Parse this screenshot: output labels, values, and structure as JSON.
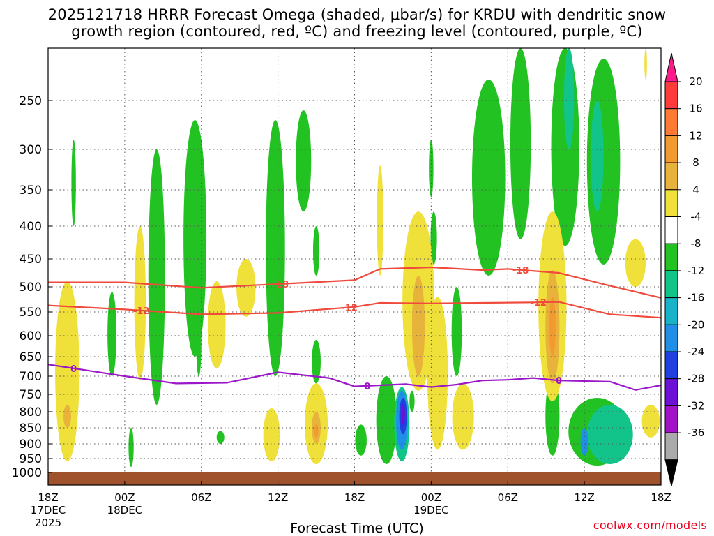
{
  "title": {
    "line1": "2025121718 HRRR Forecast Omega (shaded, μbar/s) for KRDU with dendritic snow",
    "line2": "growth region (contoured, red, ºC) and freezing level (contoured, purple, ºC)"
  },
  "xlabel": "Forecast Time (UTC)",
  "credit": "coolwx.com/models",
  "colors": {
    "dendritic_contour": "#f04a3c",
    "freezing_contour": "#9b17c9",
    "terrain": "#a0522d",
    "grid": "#555555"
  },
  "chart_data": {
    "type": "heatmap",
    "title": "2025121718 HRRR Forecast Omega (shaded, μbar/s) for KRDU with dendritic snow growth region (contoured, red, ºC) and freezing level (contoured, purple, ºC)",
    "xlabel": "Forecast Time (UTC)",
    "ylabel": "",
    "y_ticks": [
      250,
      300,
      350,
      400,
      450,
      500,
      550,
      600,
      650,
      700,
      750,
      800,
      850,
      900,
      950,
      1000
    ],
    "x_ticks": [
      {
        "label": "18Z",
        "sub1": "17DEC",
        "sub2": "2025",
        "hour": 0
      },
      {
        "label": "00Z",
        "sub1": "18DEC",
        "sub2": "",
        "hour": 6
      },
      {
        "label": "06Z",
        "sub1": "",
        "sub2": "",
        "hour": 12
      },
      {
        "label": "12Z",
        "sub1": "",
        "sub2": "",
        "hour": 18
      },
      {
        "label": "18Z",
        "sub1": "",
        "sub2": "",
        "hour": 24
      },
      {
        "label": "00Z",
        "sub1": "19DEC",
        "sub2": "",
        "hour": 30
      },
      {
        "label": "06Z",
        "sub1": "",
        "sub2": "",
        "hour": 36
      },
      {
        "label": "12Z",
        "sub1": "",
        "sub2": "",
        "hour": 42
      },
      {
        "label": "18Z",
        "sub1": "",
        "sub2": "",
        "hour": 48
      }
    ],
    "y_range_hpa": [
      1000,
      200
    ],
    "x_range_hours": [
      0,
      48
    ],
    "colorbar": {
      "labels": [
        "20",
        "16",
        "12",
        "8",
        "4",
        "-4",
        "-8",
        "-12",
        "-16",
        "-20",
        "-24",
        "-28",
        "-32",
        "-36"
      ],
      "colors": [
        "#ff3b3b",
        "#ff7a33",
        "#f29a30",
        "#e8b33a",
        "#f0e03a",
        "#ffffff",
        "#21c221",
        "#12c48a",
        "#19b3c9",
        "#1f8fe8",
        "#1f3fe0",
        "#6d11d6",
        "#a212c6",
        "#aaaaaa"
      ],
      "top_arrow_color": "#ff1a8c",
      "bottom_arrow_color": "#000000"
    },
    "contours": [
      {
        "name": "-18",
        "color": "#f04a3c",
        "label_hours": [
          18.2,
          37.0
        ],
        "points": [
          [
            0,
            492
          ],
          [
            6,
            492
          ],
          [
            12,
            502
          ],
          [
            18,
            495
          ],
          [
            24,
            488
          ],
          [
            26,
            468
          ],
          [
            30,
            465
          ],
          [
            34,
            470
          ],
          [
            36,
            468
          ],
          [
            40,
            475
          ],
          [
            44,
            498
          ],
          [
            48,
            522
          ]
        ]
      },
      {
        "name": "-12",
        "color": "#f04a3c",
        "label_hours": [
          7.3,
          23.6,
          38.4
        ],
        "points": [
          [
            0,
            537
          ],
          [
            6,
            545
          ],
          [
            12,
            555
          ],
          [
            18,
            552
          ],
          [
            24,
            540
          ],
          [
            26,
            532
          ],
          [
            30,
            533
          ],
          [
            34,
            532
          ],
          [
            38,
            531
          ],
          [
            40,
            530
          ],
          [
            44,
            555
          ],
          [
            48,
            562
          ]
        ]
      },
      {
        "name": "0",
        "color": "#9b17c9",
        "label_hours": [
          2.0,
          25.0,
          40.0
        ],
        "points": [
          [
            0,
            670
          ],
          [
            3,
            685
          ],
          [
            6,
            700
          ],
          [
            10,
            720
          ],
          [
            14,
            718
          ],
          [
            18,
            690
          ],
          [
            22,
            705
          ],
          [
            24,
            728
          ],
          [
            26,
            725
          ],
          [
            28,
            722
          ],
          [
            30,
            730
          ],
          [
            32,
            723
          ],
          [
            34,
            712
          ],
          [
            36,
            710
          ],
          [
            38,
            705
          ],
          [
            40,
            712
          ],
          [
            44,
            715
          ],
          [
            46,
            738
          ],
          [
            48,
            725
          ]
        ]
      }
    ],
    "omega_regions": [
      {
        "value": "-8",
        "color": "#21c221",
        "cx_h": 2.0,
        "p_top": 290,
        "p_bot": 400,
        "w_h": 0.35
      },
      {
        "value": "-8",
        "color": "#21c221",
        "cx_h": 5.0,
        "p_top": 510,
        "p_bot": 700,
        "w_h": 0.7
      },
      {
        "value": "-8",
        "color": "#21c221",
        "cx_h": 6.5,
        "p_top": 850,
        "p_bot": 980,
        "w_h": 0.4
      },
      {
        "value": "-8",
        "color": "#21c221",
        "cx_h": 8.5,
        "p_top": 300,
        "p_bot": 780,
        "w_h": 1.3
      },
      {
        "value": "-8",
        "color": "#21c221",
        "cx_h": 11.5,
        "p_top": 270,
        "p_bot": 650,
        "w_h": 1.8
      },
      {
        "value": "-8",
        "color": "#21c221",
        "cx_h": 11.8,
        "p_top": 550,
        "p_bot": 700,
        "w_h": 0.4
      },
      {
        "value": "-8",
        "color": "#21c221",
        "cx_h": 13.5,
        "p_top": 860,
        "p_bot": 900,
        "w_h": 0.6
      },
      {
        "value": "-8",
        "color": "#21c221",
        "cx_h": 17.8,
        "p_top": 270,
        "p_bot": 700,
        "w_h": 1.5
      },
      {
        "value": "-8",
        "color": "#21c221",
        "cx_h": 20.0,
        "p_top": 260,
        "p_bot": 380,
        "w_h": 1.2
      },
      {
        "value": "-8",
        "color": "#21c221",
        "cx_h": 21.0,
        "p_top": 400,
        "p_bot": 480,
        "w_h": 0.5
      },
      {
        "value": "-8",
        "color": "#21c221",
        "cx_h": 21.0,
        "p_top": 610,
        "p_bot": 720,
        "w_h": 0.7
      },
      {
        "value": "-8",
        "color": "#21c221",
        "cx_h": 24.5,
        "p_top": 840,
        "p_bot": 940,
        "w_h": 0.9
      },
      {
        "value": "-8",
        "color": "#21c221",
        "cx_h": 26.5,
        "p_top": 700,
        "p_bot": 970,
        "w_h": 1.6
      },
      {
        "value": "-8",
        "color": "#21c221",
        "cx_h": 28.5,
        "p_top": 740,
        "p_bot": 800,
        "w_h": 0.4
      },
      {
        "value": "-8",
        "color": "#21c221",
        "cx_h": 30.0,
        "p_top": 290,
        "p_bot": 360,
        "w_h": 0.35
      },
      {
        "value": "-8",
        "color": "#21c221",
        "cx_h": 30.2,
        "p_top": 380,
        "p_bot": 460,
        "w_h": 0.5
      },
      {
        "value": "-8",
        "color": "#21c221",
        "cx_h": 32.0,
        "p_top": 500,
        "p_bot": 700,
        "w_h": 0.8
      },
      {
        "value": "-8",
        "color": "#21c221",
        "cx_h": 34.5,
        "p_top": 230,
        "p_bot": 480,
        "w_h": 2.6
      },
      {
        "value": "-8",
        "color": "#21c221",
        "cx_h": 37.0,
        "p_top": 200,
        "p_bot": 420,
        "w_h": 1.6
      },
      {
        "value": "-8",
        "color": "#21c221",
        "cx_h": 39.5,
        "p_top": 700,
        "p_bot": 940,
        "w_h": 1.1
      },
      {
        "value": "-8",
        "color": "#21c221",
        "cx_h": 40.5,
        "p_top": 200,
        "p_bot": 430,
        "w_h": 2.2
      },
      {
        "value": "-8",
        "color": "#21c221",
        "cx_h": 43.5,
        "p_top": 210,
        "p_bot": 460,
        "w_h": 2.6
      },
      {
        "value": "-8",
        "color": "#21c221",
        "cx_h": 43.0,
        "p_top": 760,
        "p_bot": 975,
        "w_h": 4.5
      },
      {
        "value": "-12",
        "color": "#12c48a",
        "cx_h": 44.0,
        "p_top": 780,
        "p_bot": 970,
        "w_h": 3.6
      },
      {
        "value": "-12",
        "color": "#12c48a",
        "cx_h": 43.0,
        "p_top": 250,
        "p_bot": 380,
        "w_h": 1.0
      },
      {
        "value": "-12",
        "color": "#12c48a",
        "cx_h": 40.8,
        "p_top": 200,
        "p_bot": 300,
        "w_h": 0.8
      },
      {
        "value": "-12",
        "color": "#12c48a",
        "cx_h": 27.7,
        "p_top": 730,
        "p_bot": 960,
        "w_h": 1.2
      },
      {
        "value": "-16",
        "color": "#1f8fe8",
        "cx_h": 27.7,
        "p_top": 740,
        "p_bot": 920,
        "w_h": 0.9
      },
      {
        "value": "-16",
        "color": "#1f8fe8",
        "cx_h": 42.0,
        "p_top": 850,
        "p_bot": 940,
        "w_h": 0.6
      },
      {
        "value": "-24",
        "color": "#1f3fe0",
        "cx_h": 27.8,
        "p_top": 760,
        "p_bot": 870,
        "w_h": 0.6
      },
      {
        "value": "-28",
        "color": "#6d11d6",
        "cx_h": 27.8,
        "p_top": 780,
        "p_bot": 840,
        "w_h": 0.3
      },
      {
        "value": "4",
        "color": "#f0e03a",
        "cx_h": 1.5,
        "p_top": 490,
        "p_bot": 960,
        "w_h": 1.9
      },
      {
        "value": "4",
        "color": "#f0e03a",
        "cx_h": 7.2,
        "p_top": 400,
        "p_bot": 710,
        "w_h": 0.9
      },
      {
        "value": "4",
        "color": "#f0e03a",
        "cx_h": 13.2,
        "p_top": 490,
        "p_bot": 680,
        "w_h": 1.4
      },
      {
        "value": "4",
        "color": "#f0e03a",
        "cx_h": 15.5,
        "p_top": 450,
        "p_bot": 560,
        "w_h": 1.5
      },
      {
        "value": "4",
        "color": "#f0e03a",
        "cx_h": 17.5,
        "p_top": 790,
        "p_bot": 960,
        "w_h": 1.3
      },
      {
        "value": "4",
        "color": "#f0e03a",
        "cx_h": 21.0,
        "p_top": 720,
        "p_bot": 970,
        "w_h": 1.8
      },
      {
        "value": "4",
        "color": "#f0e03a",
        "cx_h": 26.0,
        "p_top": 320,
        "p_bot": 480,
        "w_h": 0.5
      },
      {
        "value": "4",
        "color": "#f0e03a",
        "cx_h": 29.0,
        "p_top": 380,
        "p_bot": 740,
        "w_h": 2.5
      },
      {
        "value": "4",
        "color": "#f0e03a",
        "cx_h": 30.5,
        "p_top": 520,
        "p_bot": 920,
        "w_h": 1.6
      },
      {
        "value": "4",
        "color": "#f0e03a",
        "cx_h": 32.5,
        "p_top": 720,
        "p_bot": 920,
        "w_h": 1.7
      },
      {
        "value": "4",
        "color": "#f0e03a",
        "cx_h": 39.5,
        "p_top": 380,
        "p_bot": 770,
        "w_h": 2.2
      },
      {
        "value": "4",
        "color": "#f0e03a",
        "cx_h": 46.0,
        "p_top": 420,
        "p_bot": 500,
        "w_h": 1.6
      },
      {
        "value": "4",
        "color": "#f0e03a",
        "cx_h": 47.2,
        "p_top": 780,
        "p_bot": 880,
        "w_h": 1.4
      },
      {
        "value": "4",
        "color": "#f0e03a",
        "cx_h": 46.8,
        "p_top": 200,
        "p_bot": 230,
        "w_h": 0.2
      },
      {
        "value": "8",
        "color": "#e8b33a",
        "cx_h": 1.5,
        "p_top": 780,
        "p_bot": 850,
        "w_h": 0.6
      },
      {
        "value": "8",
        "color": "#e8b33a",
        "cx_h": 21.0,
        "p_top": 800,
        "p_bot": 900,
        "w_h": 0.7
      },
      {
        "value": "8",
        "color": "#e8b33a",
        "cx_h": 29.0,
        "p_top": 480,
        "p_bot": 700,
        "w_h": 1.0
      },
      {
        "value": "8",
        "color": "#e8b33a",
        "cx_h": 39.5,
        "p_top": 470,
        "p_bot": 720,
        "w_h": 1.1
      },
      {
        "value": "12",
        "color": "#f29a30",
        "cx_h": 21.0,
        "p_top": 840,
        "p_bot": 880,
        "w_h": 0.3
      },
      {
        "value": "12",
        "color": "#f29a30",
        "cx_h": 39.5,
        "p_top": 520,
        "p_bot": 650,
        "w_h": 0.5
      }
    ]
  }
}
